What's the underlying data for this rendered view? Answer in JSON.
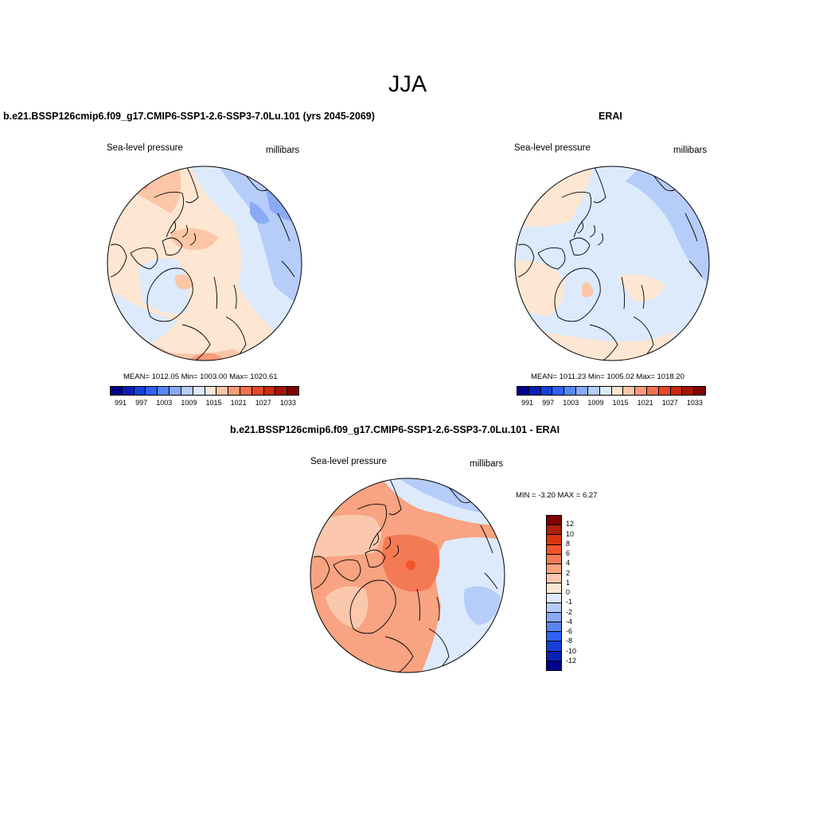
{
  "title": "JJA",
  "panels": {
    "model": {
      "title": "b.e21.BSSP126cmip6.f09_g17.CMIP6-SSP1-2.6-SSP3-7.0Lu.101 (yrs 2045-2069)",
      "left_label": "Sea-level pressure",
      "right_label": "millibars",
      "stats": "MEAN= 1012.05  Min= 1003.00  Max= 1020.61"
    },
    "obs": {
      "title": "ERAI",
      "left_label": "Sea-level pressure",
      "right_label": "millibars",
      "stats": "MEAN= 1011.23  Min= 1005.02  Max= 1018.20"
    },
    "diff": {
      "title": "b.e21.BSSP126cmip6.f09_g17.CMIP6-SSP1-2.6-SSP3-7.0Lu.101 - ERAI",
      "left_label": "Sea-level pressure",
      "right_label": "millibars",
      "stats": "MIN =  -3.20 MAX =   6.27"
    }
  },
  "colorbar_abs": {
    "colors": [
      "#00008b",
      "#0a1fb4",
      "#1440d9",
      "#2f62f0",
      "#5a86f2",
      "#8aaaf5",
      "#b6ccf9",
      "#dceafc",
      "#fde6d2",
      "#fbc6a8",
      "#f79b7b",
      "#f2704f",
      "#e6492a",
      "#c92a10",
      "#a51505",
      "#800000"
    ],
    "ticks": [
      "991",
      "997",
      "1003",
      "1009",
      "1015",
      "1021",
      "1027",
      "1033"
    ]
  },
  "colorbar_diff": {
    "colors": [
      "#800000",
      "#b0200a",
      "#d8360e",
      "#f2542a",
      "#f47a55",
      "#f8a381",
      "#fbc8ad",
      "#fde6d2",
      "#dceafc",
      "#b6ccf9",
      "#8aaaf5",
      "#5a86f2",
      "#2f62f0",
      "#1440d9",
      "#0a1fb4",
      "#00008b"
    ],
    "ticks": [
      "12",
      "10",
      "8",
      "6",
      "4",
      "2",
      "1",
      "0",
      "-1",
      "-2",
      "-4",
      "-6",
      "-8",
      "-10",
      "-12"
    ]
  }
}
